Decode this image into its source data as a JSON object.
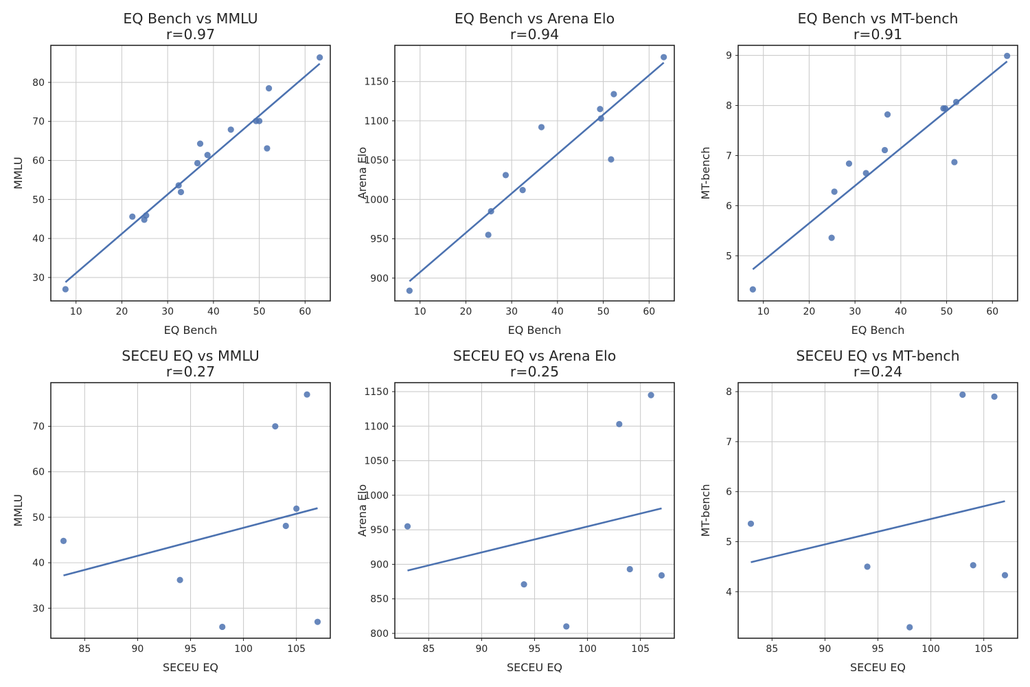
{
  "figure": {
    "accent_color": "#4c72b0",
    "grid": true
  },
  "chart_data": [
    {
      "type": "scatter",
      "title_line1": "EQ Bench vs MMLU",
      "title_line2": "r=0.97",
      "xlabel": "EQ Bench",
      "ylabel": "MMLU",
      "xlim": [
        4.5,
        65.5
      ],
      "ylim": [
        24,
        89.5
      ],
      "xticks": [
        10,
        20,
        30,
        40,
        50,
        60
      ],
      "yticks": [
        30,
        40,
        50,
        60,
        70,
        80
      ],
      "x": [
        7.7,
        22.3,
        24.9,
        25.3,
        32.4,
        32.9,
        36.5,
        37.1,
        38.7,
        43.8,
        49.3,
        50.0,
        51.7,
        52.1,
        63.2
      ],
      "y": [
        27.0,
        45.6,
        44.8,
        45.9,
        53.6,
        51.9,
        59.3,
        64.3,
        61.4,
        67.9,
        70.1,
        70.1,
        63.1,
        78.5,
        86.4
      ],
      "fit": {
        "x": [
          7.7,
          63.2
        ],
        "y": [
          28.8,
          84.8
        ]
      }
    },
    {
      "type": "scatter",
      "title_line1": "EQ Bench vs Arena Elo",
      "title_line2": "r=0.94",
      "xlabel": "EQ Bench",
      "ylabel": "Arena Elo",
      "xlim": [
        4.5,
        65.5
      ],
      "ylim": [
        871,
        1196
      ],
      "xticks": [
        10,
        20,
        30,
        40,
        50,
        60
      ],
      "yticks": [
        900,
        950,
        1000,
        1050,
        1100,
        1150
      ],
      "x": [
        7.7,
        24.9,
        25.5,
        28.7,
        32.4,
        36.5,
        49.3,
        49.5,
        51.7,
        52.3,
        63.2
      ],
      "y": [
        884,
        955,
        985,
        1031,
        1012,
        1092,
        1115,
        1103,
        1051,
        1134,
        1181
      ],
      "fit": {
        "x": [
          7.7,
          63.2
        ],
        "y": [
          896,
          1174
        ]
      }
    },
    {
      "type": "scatter",
      "title_line1": "EQ Bench vs MT-bench",
      "title_line2": "r=0.91",
      "xlabel": "EQ Bench",
      "ylabel": "MT-bench",
      "xlim": [
        4.5,
        65.5
      ],
      "ylim": [
        4.1,
        9.2
      ],
      "xticks": [
        10,
        20,
        30,
        40,
        50,
        60
      ],
      "yticks": [
        5,
        6,
        7,
        8,
        9
      ],
      "x": [
        7.7,
        24.9,
        25.5,
        28.7,
        32.4,
        36.5,
        37.1,
        49.3,
        49.7,
        51.7,
        52.1,
        63.2
      ],
      "y": [
        4.33,
        5.36,
        6.28,
        6.84,
        6.65,
        7.11,
        7.82,
        7.94,
        7.94,
        6.87,
        8.07,
        8.99
      ],
      "fit": {
        "x": [
          7.7,
          63.2
        ],
        "y": [
          4.73,
          8.88
        ]
      }
    },
    {
      "type": "scatter",
      "title_line1": "SECEU EQ vs MMLU",
      "title_line2": "r=0.27",
      "xlabel": "SECEU EQ",
      "ylabel": "MMLU",
      "xlim": [
        81.8,
        108.2
      ],
      "ylim": [
        23.4,
        79.6
      ],
      "xticks": [
        85,
        90,
        95,
        100,
        105
      ],
      "yticks": [
        30,
        40,
        50,
        60,
        70
      ],
      "x": [
        83,
        94,
        98,
        103,
        104,
        105,
        106,
        107
      ],
      "y": [
        44.8,
        36.2,
        25.9,
        70.0,
        48.1,
        51.9,
        77.0,
        27.0
      ],
      "fit": {
        "x": [
          83,
          107
        ],
        "y": [
          37.2,
          52.0
        ]
      }
    },
    {
      "type": "scatter",
      "title_line1": "SECEU EQ vs Arena Elo",
      "title_line2": "r=0.25",
      "xlabel": "SECEU EQ",
      "ylabel": "Arena Elo",
      "xlim": [
        81.8,
        108.2
      ],
      "ylim": [
        793,
        1163
      ],
      "xticks": [
        85,
        90,
        95,
        100,
        105
      ],
      "yticks": [
        800,
        850,
        900,
        950,
        1000,
        1050,
        1100,
        1150
      ],
      "x": [
        83,
        94,
        98,
        103,
        104,
        106,
        107
      ],
      "y": [
        955,
        871,
        810,
        1103,
        893,
        1145,
        884
      ],
      "fit": {
        "x": [
          83,
          107
        ],
        "y": [
          891,
          981
        ]
      }
    },
    {
      "type": "scatter",
      "title_line1": "SECEU EQ vs MT-bench",
      "title_line2": "r=0.24",
      "xlabel": "SECEU EQ",
      "ylabel": "MT-bench",
      "xlim": [
        81.8,
        108.2
      ],
      "ylim": [
        3.07,
        8.18
      ],
      "xticks": [
        85,
        90,
        95,
        100,
        105
      ],
      "yticks": [
        4,
        5,
        6,
        7,
        8
      ],
      "x": [
        83,
        94,
        98,
        103,
        104,
        106,
        107
      ],
      "y": [
        5.36,
        4.5,
        3.29,
        7.94,
        4.53,
        7.9,
        4.33
      ],
      "fit": {
        "x": [
          83,
          107
        ],
        "y": [
          4.59,
          5.81
        ]
      }
    }
  ]
}
